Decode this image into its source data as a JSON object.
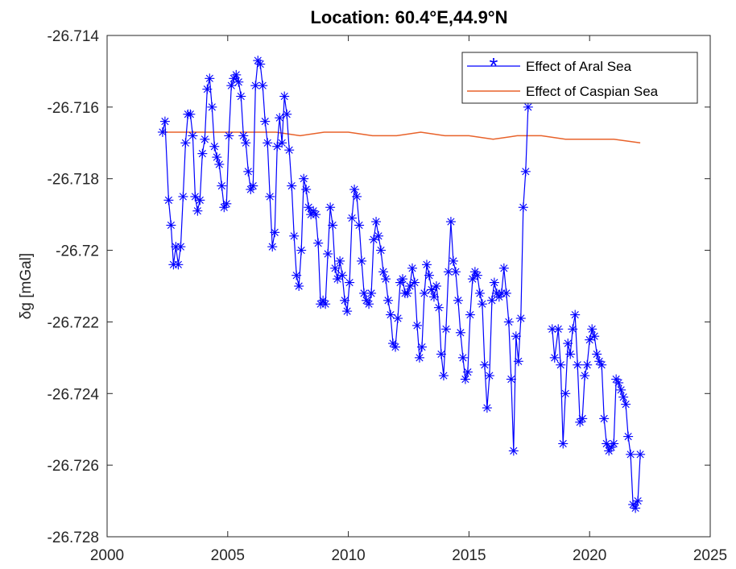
{
  "chart_data": {
    "type": "line",
    "title": "Location: 60.4°E,44.9°N",
    "xlabel": "",
    "ylabel": "δg [mGal]",
    "xlim": [
      2000,
      2025
    ],
    "ylim": [
      -26.728,
      -26.714
    ],
    "xticks": [
      2000,
      2005,
      2010,
      2015,
      2020,
      2025
    ],
    "yticks": [
      -26.714,
      -26.716,
      -26.718,
      -26.72,
      -26.722,
      -26.724,
      -26.726,
      -26.728
    ],
    "xtick_labels": [
      "2000",
      "2005",
      "2010",
      "2015",
      "2020",
      "2025"
    ],
    "ytick_labels": [
      "-26.714",
      "-26.716",
      "-26.718",
      "-26.72",
      "-26.722",
      "-26.724",
      "-26.726",
      "-26.728"
    ],
    "grid": false,
    "legend_position": "top-right",
    "series": [
      {
        "name": "Effect of Aral Sea",
        "color": "#0000ff",
        "marker": "asterisk",
        "segments": [
          [
            [
              2002.3,
              -26.7167
            ],
            [
              2002.4,
              -26.7164
            ],
            [
              2002.55,
              -26.7186
            ],
            [
              2002.65,
              -26.7193
            ],
            [
              2002.75,
              -26.7204
            ],
            [
              2002.85,
              -26.7199
            ],
            [
              2002.95,
              -26.7204
            ],
            [
              2003.05,
              -26.7199
            ],
            [
              2003.15,
              -26.7185
            ],
            [
              2003.25,
              -26.717
            ],
            [
              2003.35,
              -26.7162
            ],
            [
              2003.45,
              -26.7162
            ],
            [
              2003.55,
              -26.7168
            ],
            [
              2003.65,
              -26.7185
            ],
            [
              2003.75,
              -26.7189
            ],
            [
              2003.85,
              -26.7186
            ],
            [
              2003.95,
              -26.7173
            ],
            [
              2004.05,
              -26.7169
            ],
            [
              2004.15,
              -26.7155
            ],
            [
              2004.25,
              -26.7152
            ],
            [
              2004.35,
              -26.716
            ],
            [
              2004.45,
              -26.7171
            ],
            [
              2004.55,
              -26.7174
            ],
            [
              2004.65,
              -26.7176
            ],
            [
              2004.75,
              -26.7182
            ],
            [
              2004.85,
              -26.7188
            ],
            [
              2004.95,
              -26.7187
            ],
            [
              2005.05,
              -26.7168
            ],
            [
              2005.15,
              -26.7154
            ],
            [
              2005.25,
              -26.7152
            ],
            [
              2005.35,
              -26.7151
            ],
            [
              2005.45,
              -26.7153
            ],
            [
              2005.55,
              -26.7157
            ],
            [
              2005.65,
              -26.7168
            ],
            [
              2005.75,
              -26.717
            ],
            [
              2005.85,
              -26.7178
            ],
            [
              2005.95,
              -26.7183
            ],
            [
              2006.05,
              -26.7182
            ],
            [
              2006.15,
              -26.7154
            ],
            [
              2006.25,
              -26.7147
            ],
            [
              2006.35,
              -26.7148
            ],
            [
              2006.45,
              -26.7154
            ],
            [
              2006.55,
              -26.7164
            ],
            [
              2006.65,
              -26.717
            ],
            [
              2006.75,
              -26.7185
            ],
            [
              2006.85,
              -26.7199
            ],
            [
              2006.95,
              -26.7195
            ],
            [
              2007.05,
              -26.7171
            ],
            [
              2007.15,
              -26.7163
            ],
            [
              2007.25,
              -26.717
            ],
            [
              2007.35,
              -26.7157
            ],
            [
              2007.45,
              -26.7162
            ],
            [
              2007.55,
              -26.7172
            ],
            [
              2007.65,
              -26.7182
            ],
            [
              2007.75,
              -26.7196
            ],
            [
              2007.85,
              -26.7207
            ],
            [
              2007.95,
              -26.721
            ],
            [
              2008.05,
              -26.72
            ],
            [
              2008.15,
              -26.718
            ],
            [
              2008.25,
              -26.7183
            ],
            [
              2008.35,
              -26.7188
            ],
            [
              2008.45,
              -26.719
            ],
            [
              2008.55,
              -26.7189
            ],
            [
              2008.65,
              -26.719
            ],
            [
              2008.75,
              -26.7198
            ],
            [
              2008.85,
              -26.7215
            ],
            [
              2008.95,
              -26.7214
            ],
            [
              2009.05,
              -26.7215
            ],
            [
              2009.15,
              -26.7201
            ],
            [
              2009.25,
              -26.7188
            ],
            [
              2009.35,
              -26.7193
            ],
            [
              2009.45,
              -26.7205
            ],
            [
              2009.55,
              -26.7208
            ],
            [
              2009.65,
              -26.7203
            ],
            [
              2009.75,
              -26.7207
            ],
            [
              2009.85,
              -26.7214
            ],
            [
              2009.95,
              -26.7217
            ],
            [
              2010.05,
              -26.7209
            ],
            [
              2010.15,
              -26.7191
            ],
            [
              2010.25,
              -26.7183
            ],
            [
              2010.35,
              -26.7185
            ],
            [
              2010.45,
              -26.7193
            ],
            [
              2010.55,
              -26.7203
            ],
            [
              2010.65,
              -26.7212
            ],
            [
              2010.75,
              -26.7214
            ],
            [
              2010.85,
              -26.7215
            ],
            [
              2010.95,
              -26.7212
            ],
            [
              2011.05,
              -26.7197
            ],
            [
              2011.15,
              -26.7192
            ],
            [
              2011.25,
              -26.7196
            ],
            [
              2011.35,
              -26.72
            ],
            [
              2011.45,
              -26.7206
            ],
            [
              2011.55,
              -26.7208
            ],
            [
              2011.65,
              -26.7214
            ],
            [
              2011.75,
              -26.7218
            ],
            [
              2011.85,
              -26.7226
            ],
            [
              2011.95,
              -26.7227
            ],
            [
              2012.05,
              -26.7219
            ],
            [
              2012.15,
              -26.7209
            ],
            [
              2012.25,
              -26.7208
            ],
            [
              2012.35,
              -26.7212
            ],
            [
              2012.45,
              -26.7212
            ],
            [
              2012.55,
              -26.721
            ],
            [
              2012.65,
              -26.7205
            ],
            [
              2012.75,
              -26.7209
            ],
            [
              2012.85,
              -26.7221
            ],
            [
              2012.95,
              -26.723
            ],
            [
              2013.05,
              -26.7227
            ],
            [
              2013.15,
              -26.7212
            ],
            [
              2013.25,
              -26.7204
            ],
            [
              2013.35,
              -26.7207
            ],
            [
              2013.45,
              -26.7211
            ],
            [
              2013.55,
              -26.7213
            ],
            [
              2013.65,
              -26.721
            ],
            [
              2013.75,
              -26.7216
            ],
            [
              2013.85,
              -26.7229
            ],
            [
              2013.95,
              -26.7235
            ],
            [
              2014.05,
              -26.7222
            ],
            [
              2014.15,
              -26.7206
            ],
            [
              2014.25,
              -26.7192
            ],
            [
              2014.35,
              -26.7203
            ],
            [
              2014.45,
              -26.7206
            ],
            [
              2014.55,
              -26.7214
            ],
            [
              2014.65,
              -26.7223
            ],
            [
              2014.75,
              -26.723
            ],
            [
              2014.85,
              -26.7236
            ],
            [
              2014.95,
              -26.7234
            ],
            [
              2015.05,
              -26.7218
            ],
            [
              2015.15,
              -26.7208
            ],
            [
              2015.25,
              -26.7206
            ],
            [
              2015.35,
              -26.7207
            ],
            [
              2015.45,
              -26.7212
            ],
            [
              2015.55,
              -26.7215
            ],
            [
              2015.65,
              -26.7232
            ],
            [
              2015.75,
              -26.7244
            ],
            [
              2015.85,
              -26.7235
            ],
            [
              2015.95,
              -26.7214
            ],
            [
              2016.05,
              -26.7209
            ],
            [
              2016.15,
              -26.7212
            ],
            [
              2016.25,
              -26.7213
            ],
            [
              2016.35,
              -26.7212
            ],
            [
              2016.45,
              -26.7205
            ],
            [
              2016.55,
              -26.7212
            ],
            [
              2016.65,
              -26.722
            ],
            [
              2016.75,
              -26.7236
            ],
            [
              2016.85,
              -26.7256
            ],
            [
              2016.95,
              -26.7224
            ],
            [
              2017.05,
              -26.7231
            ],
            [
              2017.15,
              -26.7219
            ],
            [
              2017.25,
              -26.7188
            ],
            [
              2017.35,
              -26.7178
            ],
            [
              2017.45,
              -26.716
            ]
          ],
          [
            [
              2018.45,
              -26.7222
            ],
            [
              2018.55,
              -26.723
            ],
            [
              2018.7,
              -26.7222
            ],
            [
              2018.8,
              -26.7232
            ],
            [
              2018.9,
              -26.7254
            ],
            [
              2019.0,
              -26.724
            ],
            [
              2019.1,
              -26.7226
            ],
            [
              2019.2,
              -26.7229
            ],
            [
              2019.3,
              -26.7222
            ],
            [
              2019.4,
              -26.7218
            ],
            [
              2019.5,
              -26.7232
            ],
            [
              2019.6,
              -26.7248
            ],
            [
              2019.7,
              -26.7247
            ],
            [
              2019.8,
              -26.7235
            ],
            [
              2019.9,
              -26.7232
            ],
            [
              2020.0,
              -26.7225
            ],
            [
              2020.1,
              -26.7222
            ],
            [
              2020.2,
              -26.7224
            ],
            [
              2020.3,
              -26.7229
            ],
            [
              2020.4,
              -26.7231
            ],
            [
              2020.5,
              -26.7232
            ],
            [
              2020.6,
              -26.7247
            ],
            [
              2020.7,
              -26.7254
            ],
            [
              2020.8,
              -26.7256
            ],
            [
              2020.9,
              -26.7255
            ],
            [
              2021.0,
              -26.7254
            ],
            [
              2021.1,
              -26.7236
            ],
            [
              2021.2,
              -26.7237
            ],
            [
              2021.3,
              -26.7239
            ],
            [
              2021.4,
              -26.7241
            ],
            [
              2021.5,
              -26.7243
            ],
            [
              2021.6,
              -26.7252
            ],
            [
              2021.7,
              -26.7257
            ],
            [
              2021.8,
              -26.7271
            ],
            [
              2021.9,
              -26.7272
            ],
            [
              2022.0,
              -26.727
            ],
            [
              2022.1,
              -26.7257
            ]
          ]
        ]
      },
      {
        "name": "Effect of Caspian Sea",
        "color": "#e8622a",
        "marker": "none",
        "segments": [
          [
            [
              2002.3,
              -26.7167
            ],
            [
              2003.0,
              -26.7167
            ],
            [
              2004.0,
              -26.7167
            ],
            [
              2005.0,
              -26.7167
            ],
            [
              2006.0,
              -26.7167
            ],
            [
              2007.0,
              -26.7167
            ],
            [
              2008.0,
              -26.7168
            ],
            [
              2009.0,
              -26.7167
            ],
            [
              2010.0,
              -26.7167
            ],
            [
              2011.0,
              -26.7168
            ],
            [
              2012.0,
              -26.7168
            ],
            [
              2013.0,
              -26.7167
            ],
            [
              2014.0,
              -26.7168
            ],
            [
              2015.0,
              -26.7168
            ],
            [
              2016.0,
              -26.7169
            ],
            [
              2017.0,
              -26.7168
            ],
            [
              2018.0,
              -26.7168
            ],
            [
              2019.0,
              -26.7169
            ],
            [
              2020.0,
              -26.7169
            ],
            [
              2021.0,
              -26.7169
            ],
            [
              2022.1,
              -26.717
            ]
          ]
        ]
      }
    ]
  }
}
